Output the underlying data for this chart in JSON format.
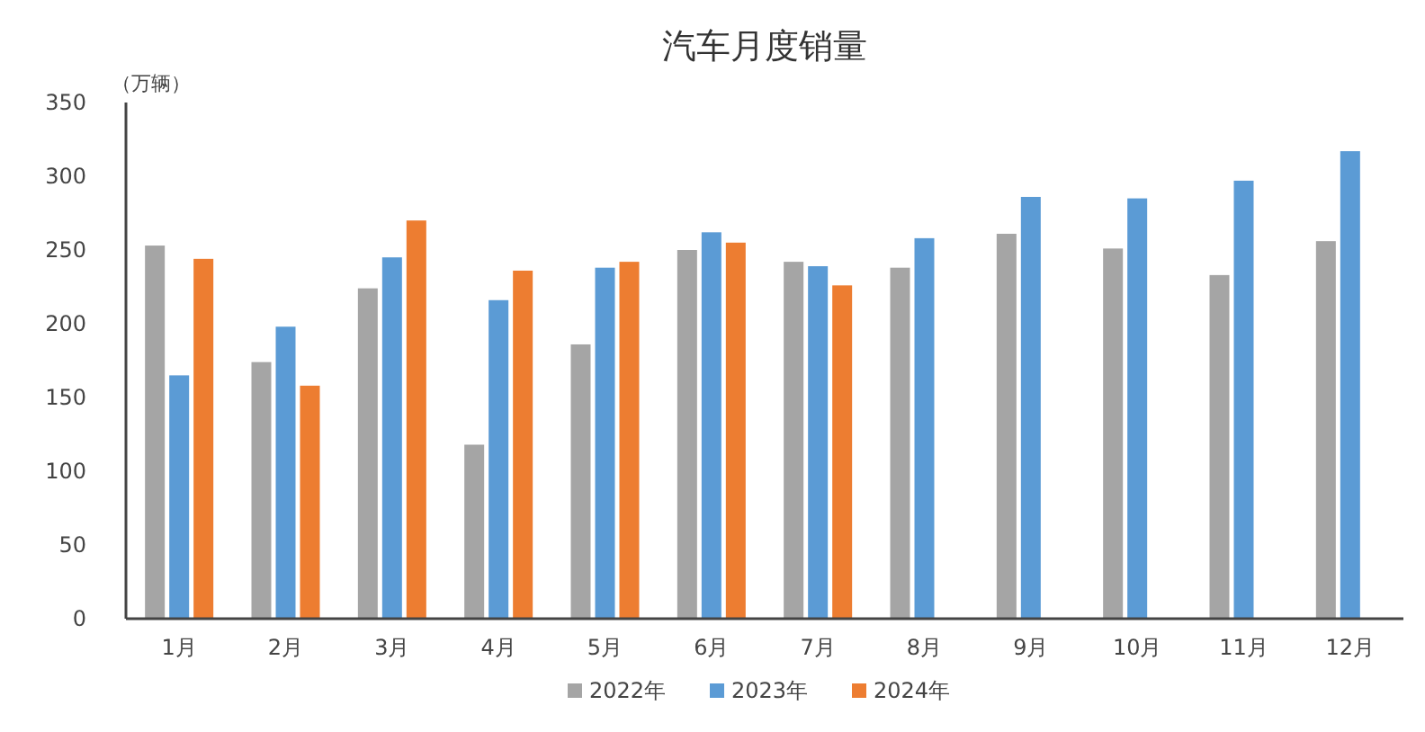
{
  "chart_data": {
    "type": "bar",
    "title": "汽车月度销量",
    "ylabel": "（万辆）",
    "categories": [
      "1月",
      "2月",
      "3月",
      "4月",
      "5月",
      "6月",
      "7月",
      "8月",
      "9月",
      "10月",
      "11月",
      "12月"
    ],
    "series": [
      {
        "name": "2022年",
        "color": "#a5a5a5",
        "values": [
          253,
          174,
          224,
          118,
          186,
          250,
          242,
          238,
          261,
          251,
          233,
          256
        ]
      },
      {
        "name": "2023年",
        "color": "#5b9bd5",
        "values": [
          165,
          198,
          245,
          216,
          238,
          262,
          239,
          258,
          286,
          285,
          297,
          317
        ]
      },
      {
        "name": "2024年",
        "color": "#ed7d31",
        "values": [
          244,
          158,
          270,
          236,
          242,
          255,
          226,
          null,
          null,
          null,
          null,
          null
        ]
      }
    ],
    "ylim": [
      0,
      350
    ],
    "yticks": [
      0,
      50,
      100,
      150,
      200,
      250,
      300,
      350
    ],
    "grid": false,
    "legend": "bottom"
  }
}
